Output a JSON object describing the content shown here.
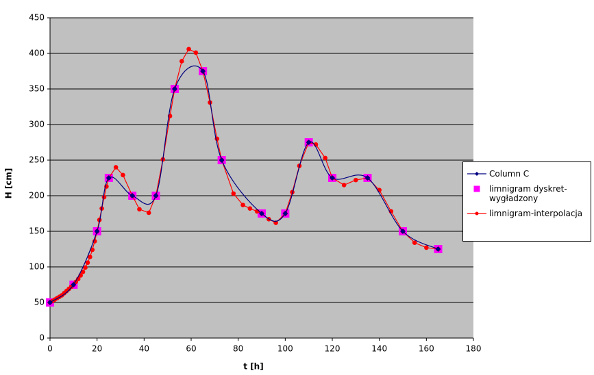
{
  "chart_data": {
    "type": "line",
    "x_label": "t [h]",
    "y_label": "H [cm]",
    "xlim": [
      0,
      180
    ],
    "xticks": [
      0,
      20,
      40,
      60,
      80,
      100,
      120,
      140,
      160,
      180
    ],
    "ylim": [
      0,
      450
    ],
    "yticks": [
      0,
      50,
      100,
      150,
      200,
      250,
      300,
      350,
      400,
      450
    ],
    "grid": true,
    "legend": "right",
    "series": [
      {
        "name": "Column C",
        "color": "#000080",
        "marker": "diamond",
        "line": "smooth",
        "x": [
          0,
          10,
          20,
          25,
          35,
          45,
          53,
          65,
          73,
          90,
          100,
          110,
          120,
          135,
          150,
          165
        ],
        "values": [
          50,
          75,
          150,
          225,
          200,
          200,
          350,
          375,
          250,
          175,
          175,
          275,
          225,
          225,
          150,
          125
        ]
      },
      {
        "name": "limnigram dyskret-wygładzony",
        "color": "#ff00ff",
        "marker": "square",
        "line": "none",
        "x": [
          0,
          10,
          20,
          25,
          35,
          45,
          53,
          65,
          73,
          90,
          100,
          110,
          120,
          135,
          150,
          165
        ],
        "values": [
          50,
          75,
          150,
          225,
          200,
          200,
          350,
          375,
          250,
          175,
          175,
          275,
          225,
          225,
          150,
          125
        ]
      },
      {
        "name": "limnigram-interpolacja",
        "color": "#ff0000",
        "marker": "circle",
        "line": "straight",
        "x": [
          0,
          1,
          2,
          3,
          4,
          5,
          6,
          7,
          8,
          9,
          10,
          11,
          12,
          13,
          14,
          15,
          16,
          17,
          18,
          19,
          20,
          21,
          22,
          23,
          24,
          25,
          28,
          31,
          35,
          38,
          42,
          45,
          48,
          51,
          53,
          56,
          59,
          62,
          65,
          68,
          71,
          73,
          78,
          82,
          85,
          88,
          90,
          93,
          96,
          100,
          103,
          106,
          110,
          113,
          117,
          120,
          125,
          130,
          135,
          140,
          145,
          150,
          155,
          160,
          165
        ],
        "values": [
          50,
          52,
          54,
          56,
          58,
          60,
          63,
          66,
          69,
          72,
          75,
          79,
          83,
          88,
          93,
          99,
          106,
          114,
          124,
          136,
          150,
          166,
          182,
          198,
          213,
          225,
          240,
          229,
          200,
          181,
          176,
          200,
          251,
          312,
          350,
          389,
          406,
          401,
          375,
          331,
          280,
          250,
          203,
          187,
          182,
          178,
          175,
          167,
          162,
          175,
          205,
          242,
          275,
          272,
          253,
          225,
          215,
          222,
          225,
          208,
          178,
          150,
          134,
          127,
          125
        ]
      }
    ]
  }
}
